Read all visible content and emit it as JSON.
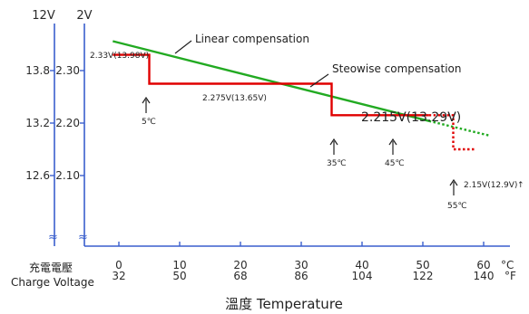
{
  "chart_data": {
    "type": "line",
    "axes": {
      "y_outer_header": "12V",
      "y_inner_header": "2V",
      "y_outer_ticks": [
        "13.8",
        "13.2",
        "12.6"
      ],
      "y_inner_ticks": [
        "2.30",
        "2.20",
        "2.10"
      ],
      "y_range": [
        2.05,
        2.38
      ],
      "x_range": [
        -3,
        63
      ],
      "x_ticks_c": [
        "0",
        "10",
        "20",
        "30",
        "40",
        "50",
        "60"
      ],
      "x_ticks_f": [
        "32",
        "50",
        "68",
        "86",
        "104",
        "122",
        "140"
      ],
      "x_unit_c": "°C",
      "x_unit_f": "°F",
      "x_title": "溫度  Temperature",
      "charge_voltage_label_cn": "充電電壓",
      "charge_voltage_label_en": "Charge Voltage"
    },
    "series": [
      {
        "name": "Linear compensation",
        "color": "#22aa22",
        "style": "solid",
        "points": [
          [
            -1,
            2.356
          ],
          [
            51,
            2.204
          ]
        ]
      },
      {
        "name": "Linear compensation",
        "color": "#22aa22",
        "style": "dotted",
        "points": [
          [
            51,
            2.204
          ],
          [
            61,
            2.176
          ]
        ]
      },
      {
        "name": "Steowise compensation",
        "color": "#e00000",
        "style": "solid",
        "points": [
          [
            -1,
            2.33
          ],
          [
            5,
            2.33
          ],
          [
            5,
            2.275
          ],
          [
            35,
            2.275
          ],
          [
            35,
            2.215
          ],
          [
            51,
            2.215
          ]
        ]
      },
      {
        "name": "Steowise compensation",
        "color": "#e00000",
        "style": "dotted",
        "points": [
          [
            51,
            2.215
          ],
          [
            55,
            2.215
          ],
          [
            55,
            2.15
          ],
          [
            58.5,
            2.15
          ]
        ]
      }
    ],
    "annotations": {
      "linear_label": "Linear compensation",
      "stepwise_label": "Steowise compensation",
      "v1": "2.33V(13.98V)",
      "v2": "2.275V(13.65V)",
      "v3": "2.215V(13.29V)",
      "v4": "2.15V(12.9V)",
      "v4_arrow": "↑",
      "t1": "5℃",
      "t2": "35℃",
      "t3": "45℃",
      "t4": "55℃"
    },
    "colors": {
      "axis": "#3a5fcd",
      "linear": "#22aa22",
      "stepwise": "#e00000"
    }
  }
}
